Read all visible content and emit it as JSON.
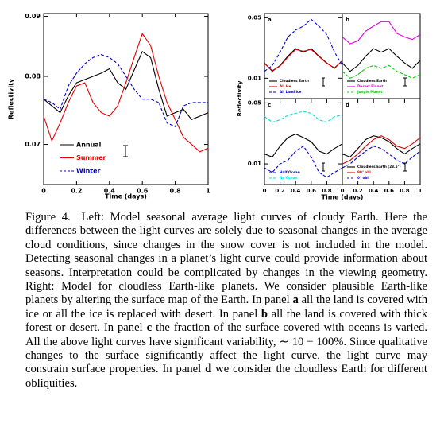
{
  "chart_data": [
    {
      "type": "line",
      "log": true,
      "xlabel": "Time (days)",
      "ylabel": "Reflectivity",
      "legend": "lower left",
      "x": [
        0,
        0.05,
        0.1,
        0.15,
        0.2,
        0.25,
        0.3,
        0.35,
        0.4,
        0.45,
        0.5,
        0.55,
        0.6,
        0.65,
        0.7,
        0.75,
        0.8,
        0.85,
        0.9,
        0.95,
        1
      ],
      "xlim": [
        0,
        1
      ],
      "xticks": [
        0,
        0.2,
        0.4,
        0.6,
        0.8,
        1
      ],
      "ylim": [
        0.0647,
        0.0905
      ],
      "yticks": [
        0.07,
        0.08,
        0.09
      ],
      "series": [
        {
          "name": "Annual",
          "color": "#000000",
          "values": [
            0.0765,
            0.0755,
            0.0745,
            0.077,
            0.079,
            0.0795,
            0.08,
            0.0805,
            0.0812,
            0.079,
            0.078,
            0.081,
            0.084,
            0.083,
            0.078,
            0.074,
            0.0745,
            0.075,
            0.0735,
            0.074,
            0.0745
          ]
        },
        {
          "name": "Summer",
          "color": "#e00000",
          "values": [
            0.074,
            0.0705,
            0.073,
            0.076,
            0.0785,
            0.079,
            0.076,
            0.0745,
            0.074,
            0.0755,
            0.079,
            0.083,
            0.087,
            0.085,
            0.08,
            0.076,
            0.0735,
            0.071,
            0.07,
            0.069,
            0.0695
          ]
        },
        {
          "name": "Winter",
          "color": "#0000d0",
          "dashed": true,
          "values": [
            0.0765,
            0.076,
            0.075,
            0.0785,
            0.0805,
            0.082,
            0.083,
            0.0835,
            0.083,
            0.082,
            0.08,
            0.078,
            0.0765,
            0.0765,
            0.076,
            0.073,
            0.0725,
            0.0755,
            0.076,
            0.076,
            0.076
          ]
        }
      ]
    },
    {
      "type": "panels",
      "xlabel": "Time (days)",
      "ylabel": "Reflectivity",
      "panels": [
        {
          "type": "line",
          "label": "a",
          "log": true,
          "legend": "lower left",
          "x": [
            0,
            0.1,
            0.2,
            0.3,
            0.4,
            0.5,
            0.6,
            0.7,
            0.8,
            0.9,
            1
          ],
          "xlim": [
            0,
            1
          ],
          "ylim": [
            0.0058,
            0.056
          ],
          "yticks": [
            0.01,
            0.05
          ],
          "series": [
            {
              "name": "Cloudless Earth",
              "color": "#000000",
              "values": [
                0.015,
                0.012,
                0.014,
                0.018,
                0.022,
                0.02,
                0.022,
                0.018,
                0.015,
                0.013,
                0.016
              ]
            },
            {
              "name": "All Ice",
              "color": "#e00000",
              "values": [
                0.0148,
                0.0122,
                0.0138,
                0.0175,
                0.0215,
                0.0205,
                0.0215,
                0.0178,
                0.0148,
                0.0132,
                0.0158
              ]
            },
            {
              "name": "All Land Ice",
              "color": "#0000d0",
              "dashed": true,
              "values": [
                0.012,
                0.014,
                0.02,
                0.03,
                0.036,
                0.04,
                0.048,
                0.04,
                0.032,
                0.02,
                0.014
              ]
            }
          ]
        },
        {
          "type": "line",
          "label": "b",
          "log": true,
          "legend": "lower left",
          "x": [
            0,
            0.1,
            0.2,
            0.3,
            0.4,
            0.5,
            0.6,
            0.7,
            0.8,
            0.9,
            1
          ],
          "xlim": [
            0,
            1
          ],
          "ylim": [
            0.0058,
            0.056
          ],
          "series": [
            {
              "name": "Cloudless Earth",
              "color": "#000000",
              "values": [
                0.015,
                0.012,
                0.014,
                0.018,
                0.022,
                0.02,
                0.022,
                0.018,
                0.015,
                0.013,
                0.016
              ]
            },
            {
              "name": "Desert Planet",
              "color": "#e000e0",
              "values": [
                0.03,
                0.025,
                0.027,
                0.035,
                0.04,
                0.045,
                0.045,
                0.033,
                0.03,
                0.028,
                0.032
              ]
            },
            {
              "name": "Jungle Planet",
              "color": "#00d000",
              "dashed": true,
              "values": [
                0.012,
                0.01,
                0.011,
                0.013,
                0.014,
                0.013,
                0.014,
                0.012,
                0.011,
                0.01,
                0.011
              ]
            }
          ]
        },
        {
          "type": "line",
          "label": "c",
          "log": true,
          "legend": "lower left",
          "x": [
            0,
            0.1,
            0.2,
            0.3,
            0.4,
            0.5,
            0.6,
            0.7,
            0.8,
            0.9,
            1
          ],
          "xlim": [
            0,
            1
          ],
          "xticks": [
            0,
            0.2,
            0.4,
            0.6,
            0.8
          ],
          "ylim": [
            0.0058,
            0.056
          ],
          "yticks": [
            0.01,
            0.05
          ],
          "series": [
            {
              "color": "#000000",
              "values": [
                0.013,
                0.012,
                0.016,
                0.02,
                0.022,
                0.02,
                0.018,
                0.014,
                0.013,
                0.015,
                0.017
              ]
            },
            {
              "name": "Half Ocean",
              "color": "#0000d0",
              "dashed": true,
              "values": [
                0.009,
                0.008,
                0.01,
                0.011,
                0.014,
                0.016,
                0.012,
                0.008,
                0.007,
                0.008,
                0.009
              ]
            },
            {
              "name": "No Ocean",
              "color": "#00e0e0",
              "dashed": true,
              "values": [
                0.035,
                0.03,
                0.032,
                0.036,
                0.038,
                0.04,
                0.038,
                0.032,
                0.03,
                0.035,
                0.036
              ]
            }
          ]
        },
        {
          "type": "line",
          "label": "d",
          "log": true,
          "legend": "lower left",
          "x": [
            0,
            0.1,
            0.2,
            0.3,
            0.4,
            0.5,
            0.6,
            0.7,
            0.8,
            0.9,
            1
          ],
          "xlim": [
            0,
            1
          ],
          "xticks": [
            0,
            0.2,
            0.4,
            0.6,
            0.8,
            1
          ],
          "ylim": [
            0.0058,
            0.056
          ],
          "series": [
            {
              "name": "Cloudless Earth (23.5°)",
              "color": "#000000",
              "values": [
                0.013,
                0.012,
                0.015,
                0.019,
                0.021,
                0.02,
                0.018,
                0.015,
                0.013,
                0.015,
                0.017
              ]
            },
            {
              "name": "90° obl",
              "color": "#e00000",
              "values": [
                0.01,
                0.011,
                0.013,
                0.016,
                0.019,
                0.021,
                0.019,
                0.016,
                0.015,
                0.017,
                0.02
              ]
            },
            {
              "name": "0° obl",
              "color": "#0000d0",
              "dashed": true,
              "values": [
                0.009,
                0.01,
                0.012,
                0.014,
                0.016,
                0.015,
                0.013,
                0.011,
                0.01,
                0.012,
                0.014
              ]
            }
          ]
        }
      ]
    }
  ],
  "caption": {
    "label": "Figure 4.",
    "runs": [
      {
        "text": "Left: Model seasonal average light curves of cloudy Earth. Here the differences between the light curves are solely due to seasonal changes in the average cloud conditions, since changes in the snow cover is not included in the model. Detecting seasonal changes in a planet’s light curve could provide information about seasons. Interpretation could be complicated by changes in the viewing geometry. Right: Model for cloudless Earth-like planets. We consider plausible Earth-like planets by altering the surface map of the Earth. In panel ",
        "bold": false
      },
      {
        "text": "a",
        "bold": true
      },
      {
        "text": " all the land is covered with ice or all the ice is replaced with desert. In panel ",
        "bold": false
      },
      {
        "text": "b",
        "bold": true
      },
      {
        "text": " all the land is covered with thick forest or desert. In panel ",
        "bold": false
      },
      {
        "text": "c",
        "bold": true
      },
      {
        "text": " the fraction of the surface covered with oceans is varied. All the above light curves have significant variability, ∼ 10 − 100%. Since qualitative changes to the surface significantly affect the light curve, the light curve may constrain surface properties. In panel ",
        "bold": false
      },
      {
        "text": "d",
        "bold": true
      },
      {
        "text": " we consider the cloudless Earth for different obliquities.",
        "bold": false
      }
    ]
  }
}
